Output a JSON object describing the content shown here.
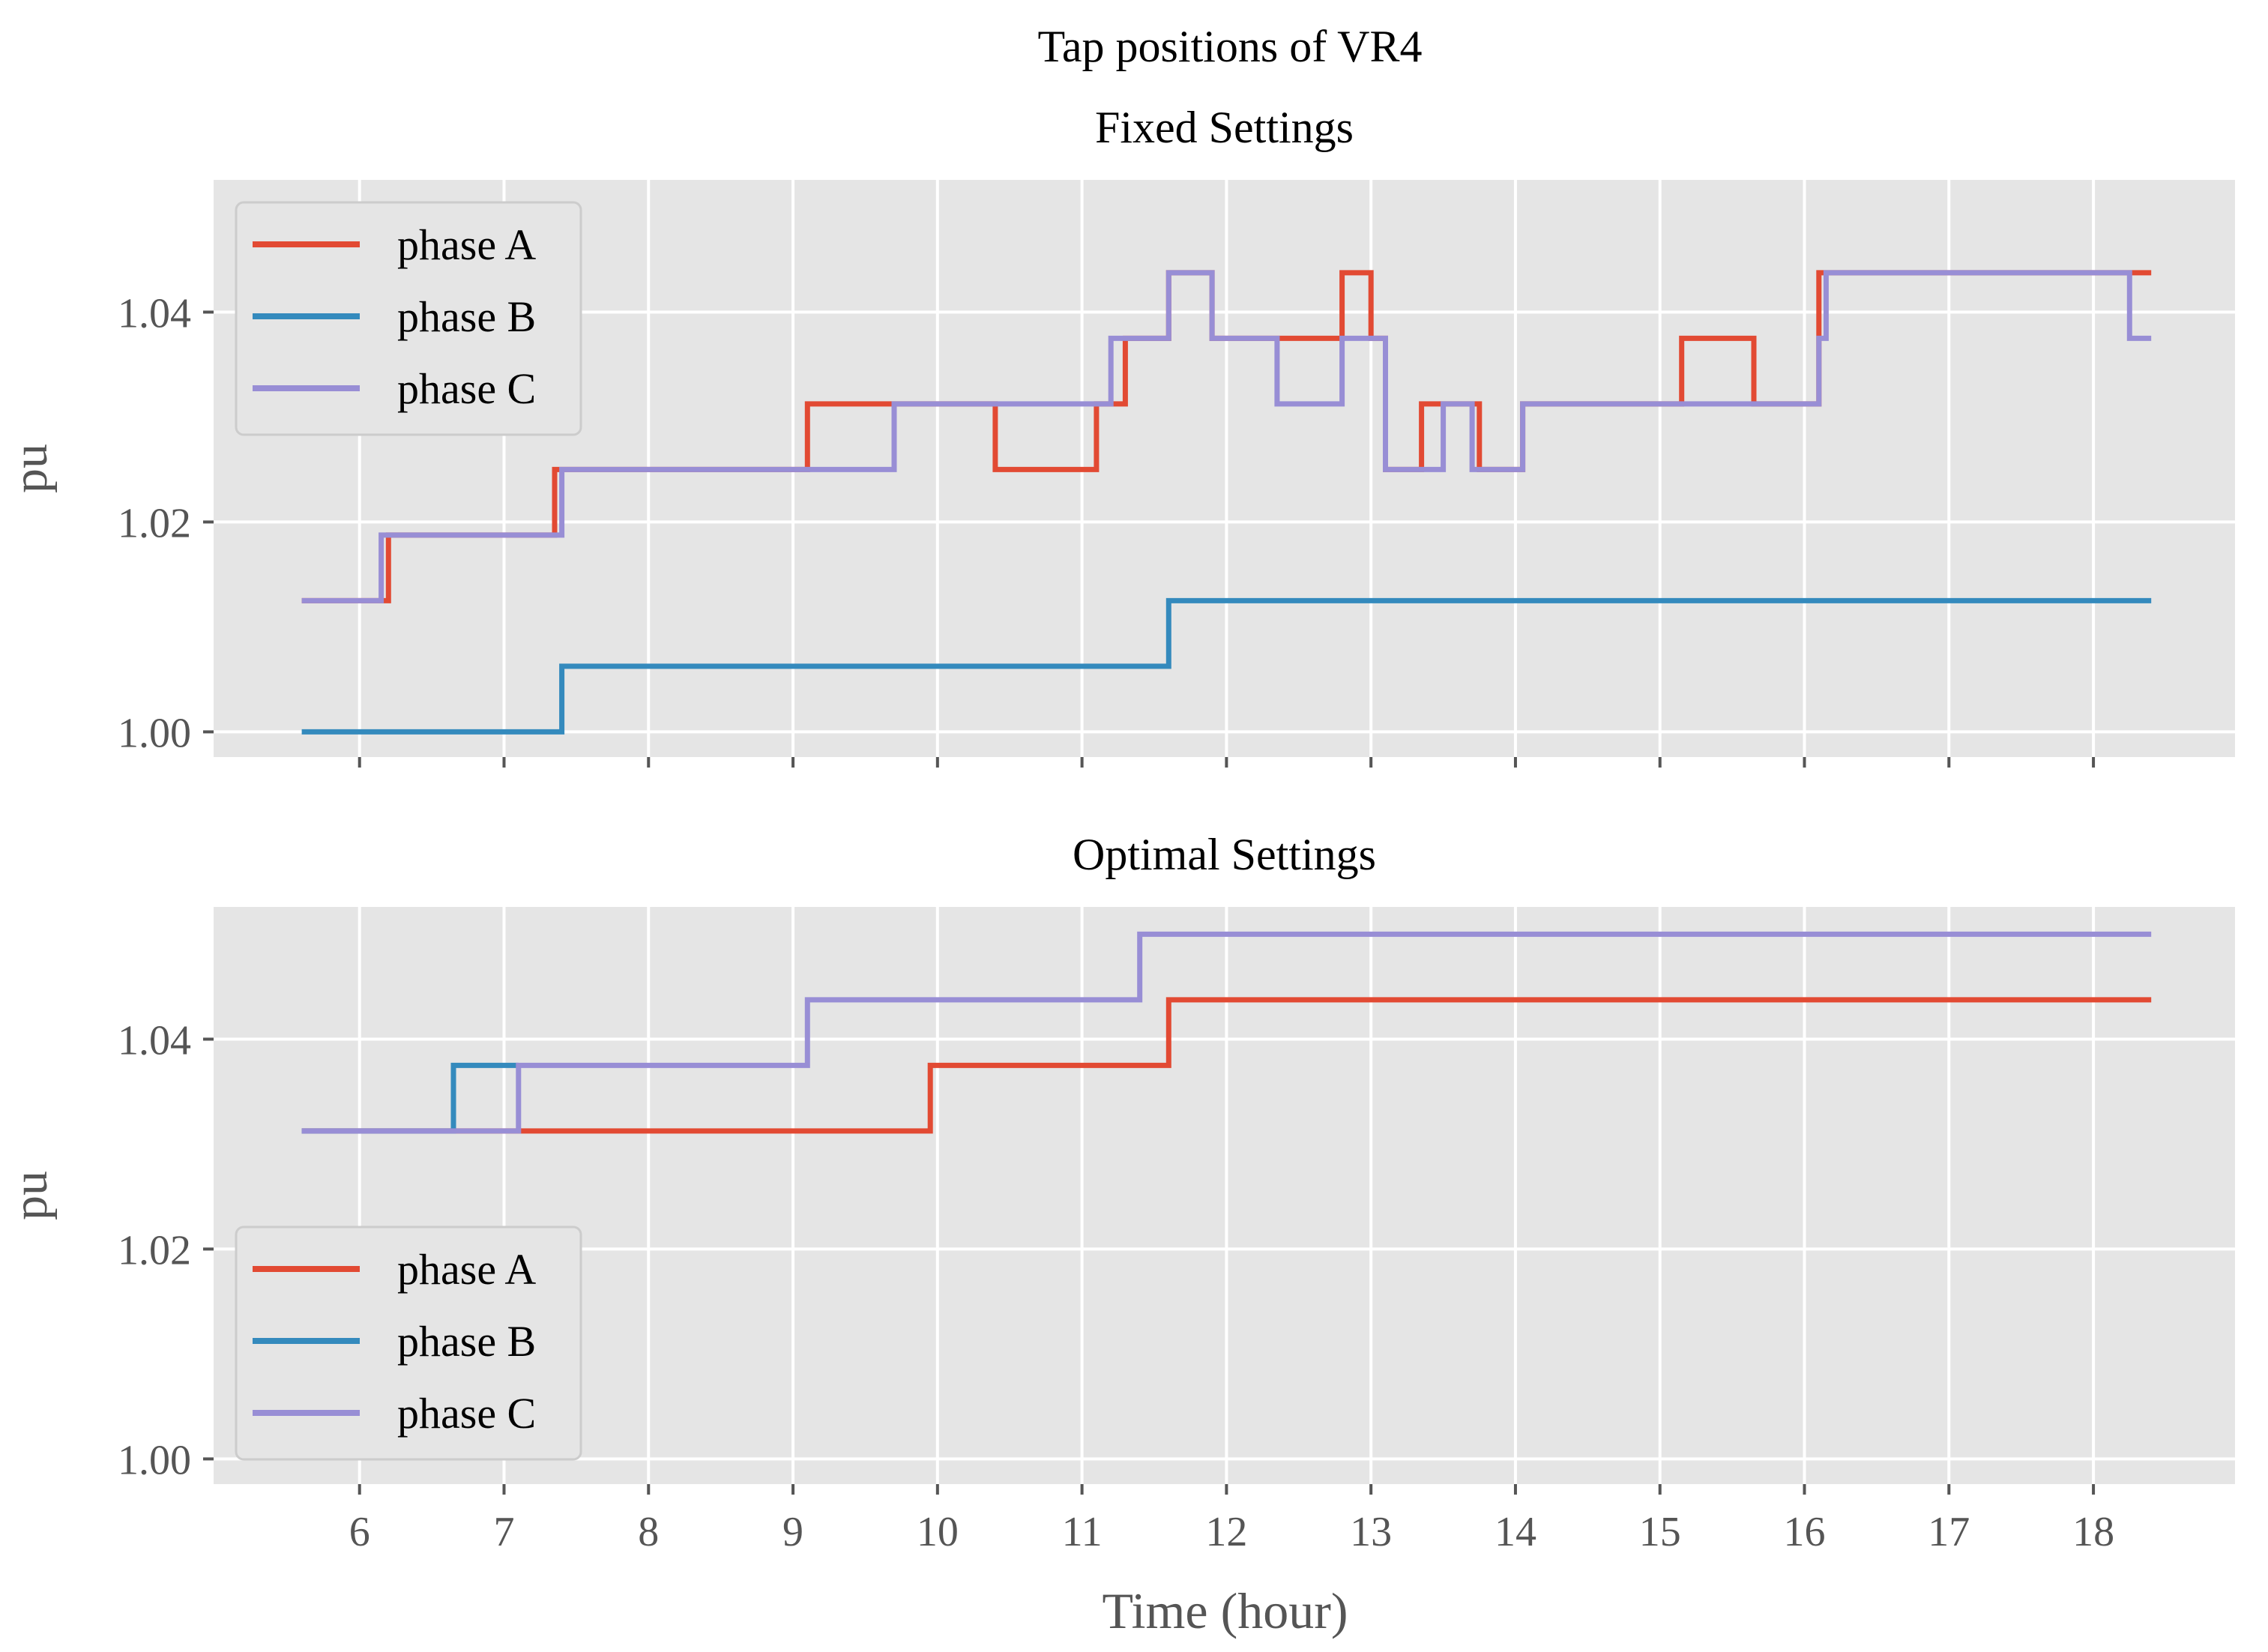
{
  "figure_title": "Tap positions of VR4",
  "chart_data": [
    {
      "type": "line",
      "title": "Fixed Settings",
      "xlabel": "Time (hour)",
      "ylabel": "pu",
      "xlim": [
        4.99,
        18.98
      ],
      "ylim": [
        0.9976,
        1.0526
      ],
      "xticks": [
        6,
        7,
        8,
        9,
        10,
        11,
        12,
        13,
        14,
        15,
        16,
        17,
        18
      ],
      "xtick_labels_shown": false,
      "yticks": [
        1.0,
        1.02,
        1.04
      ],
      "ytick_labels": [
        "1.00",
        "1.02",
        "1.04"
      ],
      "grid": true,
      "legend_position": "upper left",
      "series": [
        {
          "name": "phase A",
          "color": "#E24A33",
          "x": [
            5.6,
            6.2,
            6.2,
            7.35,
            7.35,
            7.4,
            7.4,
            9.1,
            9.1,
            9.7,
            9.7,
            10.4,
            10.4,
            11.1,
            11.1,
            11.3,
            11.3,
            11.6,
            11.6,
            11.9,
            11.9,
            12.8,
            12.8,
            13.0,
            13.0,
            13.1,
            13.1,
            13.35,
            13.35,
            13.75,
            13.75,
            14.05,
            14.05,
            15.15,
            15.15,
            15.65,
            15.65,
            16.1,
            16.1,
            18.4
          ],
          "y": [
            1.0125,
            1.0125,
            1.01875,
            1.01875,
            1.025,
            1.025,
            1.025,
            1.025,
            1.03125,
            1.03125,
            1.03125,
            1.03125,
            1.025,
            1.025,
            1.03125,
            1.03125,
            1.0375,
            1.0375,
            1.04375,
            1.04375,
            1.0375,
            1.0375,
            1.04375,
            1.04375,
            1.0375,
            1.0375,
            1.025,
            1.025,
            1.03125,
            1.03125,
            1.025,
            1.025,
            1.03125,
            1.03125,
            1.0375,
            1.0375,
            1.03125,
            1.03125,
            1.04375,
            1.04375
          ]
        },
        {
          "name": "phase B",
          "color": "#348ABD",
          "x": [
            5.6,
            7.4,
            7.4,
            11.6,
            11.6,
            18.4
          ],
          "y": [
            1.0,
            1.0,
            1.00625,
            1.00625,
            1.0125,
            1.0125
          ]
        },
        {
          "name": "phase C",
          "color": "#988ED5",
          "x": [
            5.6,
            6.15,
            6.15,
            7.4,
            7.4,
            9.7,
            9.7,
            11.2,
            11.2,
            11.6,
            11.6,
            11.9,
            11.9,
            12.35,
            12.35,
            12.8,
            12.8,
            13.1,
            13.1,
            13.5,
            13.5,
            13.7,
            13.7,
            14.05,
            14.05,
            16.1,
            16.1,
            16.15,
            16.15,
            18.25,
            18.25,
            18.4
          ],
          "y": [
            1.0125,
            1.0125,
            1.01875,
            1.01875,
            1.025,
            1.025,
            1.03125,
            1.03125,
            1.0375,
            1.0375,
            1.04375,
            1.04375,
            1.0375,
            1.0375,
            1.03125,
            1.03125,
            1.0375,
            1.0375,
            1.025,
            1.025,
            1.03125,
            1.03125,
            1.025,
            1.025,
            1.03125,
            1.03125,
            1.0375,
            1.0375,
            1.04375,
            1.04375,
            1.0375,
            1.0375
          ]
        }
      ]
    },
    {
      "type": "line",
      "title": "Optimal Settings",
      "xlabel": "Time (hour)",
      "ylabel": "pu",
      "xlim": [
        4.99,
        18.98
      ],
      "ylim": [
        0.9976,
        1.0526
      ],
      "xticks": [
        6,
        7,
        8,
        9,
        10,
        11,
        12,
        13,
        14,
        15,
        16,
        17,
        18
      ],
      "xtick_labels_shown": true,
      "yticks": [
        1.0,
        1.02,
        1.04
      ],
      "ytick_labels": [
        "1.00",
        "1.02",
        "1.04"
      ],
      "grid": true,
      "legend_position": "lower left",
      "series": [
        {
          "name": "phase A",
          "color": "#E24A33",
          "x": [
            5.6,
            9.95,
            9.95,
            11.6,
            11.6,
            18.4
          ],
          "y": [
            1.03125,
            1.03125,
            1.0375,
            1.0375,
            1.04375,
            1.04375
          ]
        },
        {
          "name": "phase B",
          "color": "#348ABD",
          "x": [
            5.6,
            6.65,
            6.65,
            7.1
          ],
          "y": [
            1.03125,
            1.03125,
            1.0375,
            1.0375
          ]
        },
        {
          "name": "phase C",
          "color": "#988ED5",
          "x": [
            5.6,
            7.1,
            7.1,
            9.1,
            9.1,
            11.4,
            11.4,
            18.4
          ],
          "y": [
            1.03125,
            1.03125,
            1.0375,
            1.0375,
            1.04375,
            1.04375,
            1.05,
            1.05
          ]
        }
      ]
    }
  ]
}
